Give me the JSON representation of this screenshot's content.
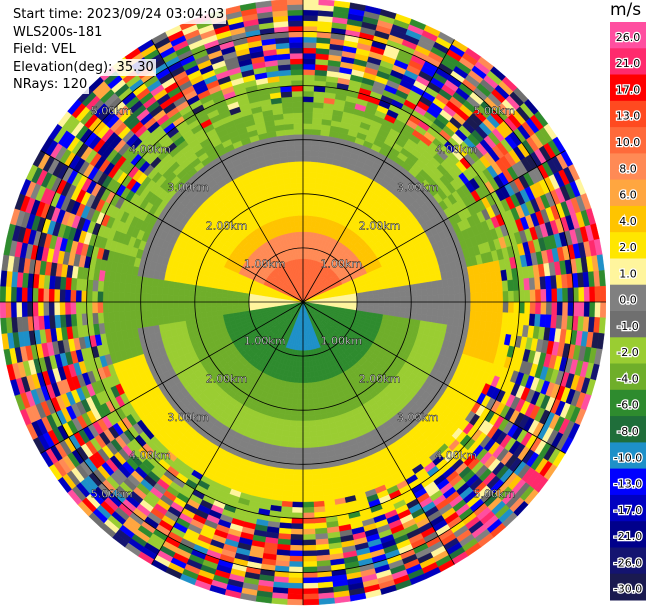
{
  "info": {
    "start_time": "Start time: 2023/09/24 03:04:03",
    "instrument": "WLS200s-181",
    "field": "Field: VEL",
    "elevation": "Elevation(deg): 35.30",
    "nrays": "NRays: 120"
  },
  "chart_data": {
    "type": "heatmap",
    "projection": "polar-ppi",
    "field": "VEL",
    "units": "m/s",
    "range_rings_km": [
      1.0,
      2.0,
      3.0,
      4.0,
      5.0
    ],
    "ring_labels": [
      "1.00km",
      "2.00km",
      "3.00km",
      "4.00km",
      "5.00km"
    ],
    "max_range_km": 5.6,
    "nrays": 120,
    "azimuth_spokes_deg": [
      0,
      30,
      60,
      90,
      120,
      150,
      180,
      210,
      240,
      270,
      300,
      330
    ],
    "colorbar": {
      "label": "m/s",
      "ticks": [
        "26.0",
        "21.0",
        "17.0",
        "13.0",
        "10.0",
        "8.0",
        "6.0",
        "4.0",
        "2.0",
        "1.0",
        "0.0",
        "-1.0",
        "-2.0",
        "-4.0",
        "-6.0",
        "-8.0",
        "-10.0",
        "-13.0",
        "-17.0",
        "-21.0",
        "-26.0",
        "-30.0"
      ],
      "colors": [
        "#ff4fa0",
        "#ff2a6d",
        "#ff0000",
        "#ff4a20",
        "#ff6a3a",
        "#ff8a55",
        "#ffa640",
        "#ffc400",
        "#ffe600",
        "#fff59d",
        "#808080",
        "#6f6f6f",
        "#9acd32",
        "#6fae2a",
        "#2e8b2e",
        "#1f6e3a",
        "#1e90c8",
        "#0000ff",
        "#0000c0",
        "#00008b",
        "#141470",
        "#1a1a50"
      ]
    }
  }
}
